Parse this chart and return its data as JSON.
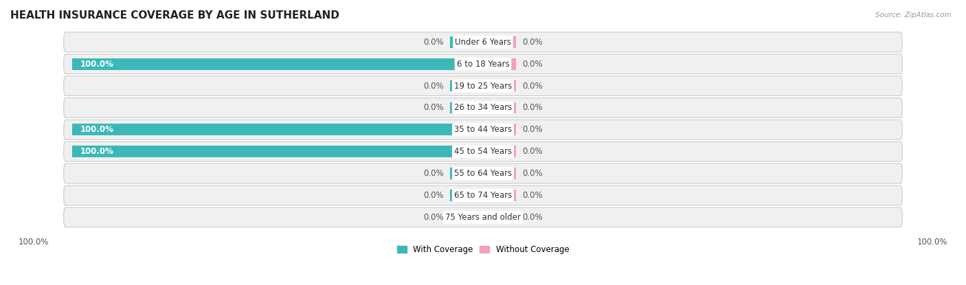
{
  "title": "HEALTH INSURANCE COVERAGE BY AGE IN SUTHERLAND",
  "source": "Source: ZipAtlas.com",
  "categories": [
    "Under 6 Years",
    "6 to 18 Years",
    "19 to 25 Years",
    "26 to 34 Years",
    "35 to 44 Years",
    "45 to 54 Years",
    "55 to 64 Years",
    "65 to 74 Years",
    "75 Years and older"
  ],
  "with_coverage": [
    0.0,
    100.0,
    0.0,
    0.0,
    100.0,
    100.0,
    0.0,
    0.0,
    0.0
  ],
  "without_coverage": [
    0.0,
    0.0,
    0.0,
    0.0,
    0.0,
    0.0,
    0.0,
    0.0,
    0.0
  ],
  "color_with": "#3db8b8",
  "color_without": "#f4a0b8",
  "color_row_bg": "#f0f0f0",
  "bar_height": 0.62,
  "stub_size": 8.0,
  "max_val": 100.0,
  "legend_with": "With Coverage",
  "legend_without": "Without Coverage",
  "axis_label_left": "100.0%",
  "axis_label_right": "100.0%",
  "title_fontsize": 11,
  "label_fontsize": 8.5,
  "category_fontsize": 8.5
}
